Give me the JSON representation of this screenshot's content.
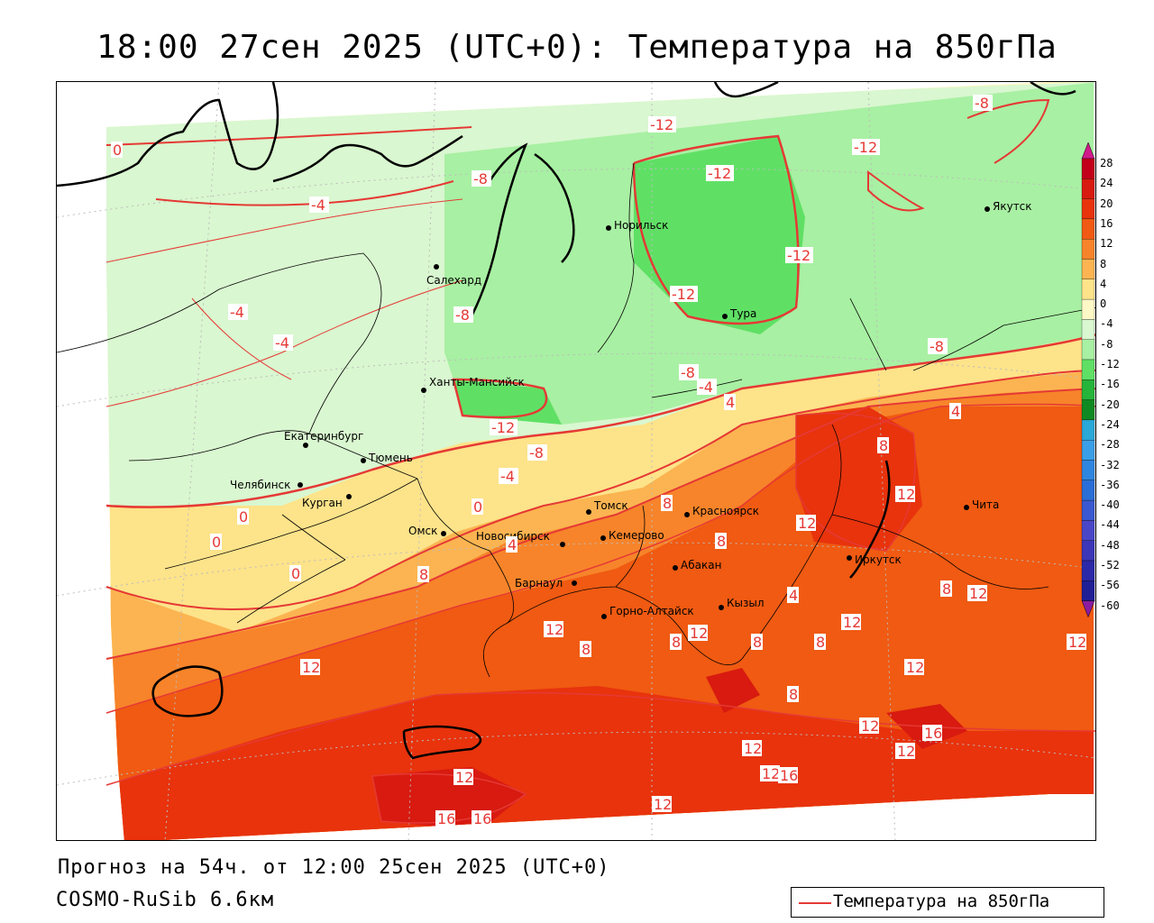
{
  "title": "18:00 27сен 2025 (UTC+0): Температура на 850гПа",
  "footer": {
    "forecast": "Прогноз на 54ч. от 12:00 25сен 2025 (UTC+0)",
    "model": "COSMO-RuSib 6.6км"
  },
  "legend": {
    "label": "Температура на 850гПа",
    "line_color": "#e53935"
  },
  "colorbar": {
    "labels": [
      "28",
      "24",
      "20",
      "16",
      "12",
      "8",
      "4",
      "0",
      "-4",
      "-8",
      "-12",
      "-16",
      "-20",
      "-24",
      "-28",
      "-32",
      "-36",
      "-40",
      "-44",
      "-48",
      "-52",
      "-56",
      "-60"
    ],
    "colors": [
      "#c2001a",
      "#d81a10",
      "#e8330d",
      "#f05a12",
      "#f7842a",
      "#fbb451",
      "#fde38a",
      "#fef7c6",
      "#d9f7d0",
      "#a8f0a3",
      "#5fe065",
      "#26b43a",
      "#0f8a22",
      "#2aa8d8",
      "#3a9fe8",
      "#2f86e0",
      "#2a6ed8",
      "#3a58d0",
      "#4a46c8",
      "#3c36b8",
      "#2c29a8",
      "#201f96",
      "#8b1ba0"
    ]
  },
  "cities": [
    {
      "name": "Норильск"
    },
    {
      "name": "Якутск"
    },
    {
      "name": "Салехард"
    },
    {
      "name": "Тура"
    },
    {
      "name": "Ханты-Мансийск"
    },
    {
      "name": "Екатеринбург"
    },
    {
      "name": "Тюмень"
    },
    {
      "name": "Челябинск"
    },
    {
      "name": "Курган"
    },
    {
      "name": "Омск"
    },
    {
      "name": "Томск"
    },
    {
      "name": "Красноярск"
    },
    {
      "name": "Новосибирск"
    },
    {
      "name": "Кемерово"
    },
    {
      "name": "Абакан"
    },
    {
      "name": "Барнаул"
    },
    {
      "name": "Иркутск"
    },
    {
      "name": "Чита"
    },
    {
      "name": "Горно-Алтайск"
    },
    {
      "name": "Кызыл"
    }
  ],
  "contour_labels": [
    "-12",
    "-12",
    "-12",
    "-12",
    "-12",
    "-12",
    "-8",
    "-8",
    "-8",
    "-8",
    "-8",
    "-8",
    "-4",
    "-4",
    "-4",
    "-4",
    "-4",
    "0",
    "0",
    "0",
    "0",
    "0",
    "4",
    "4",
    "4",
    "4",
    "8",
    "8",
    "8",
    "8",
    "8",
    "8",
    "8",
    "8",
    "8",
    "8",
    "12",
    "12",
    "12",
    "12",
    "12",
    "12",
    "12",
    "12",
    "12",
    "12",
    "12",
    "12",
    "12",
    "12",
    "12",
    "16",
    "16",
    "16",
    "16"
  ]
}
